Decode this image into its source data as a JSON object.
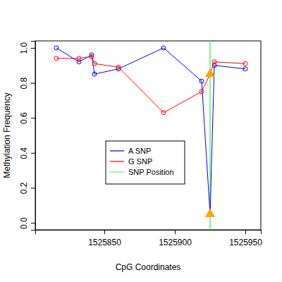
{
  "chart_data": {
    "type": "line",
    "marker": "circle",
    "x_label": "CpG Coordinates",
    "y_label": "Methylation Frequency",
    "x": [
      1525816,
      1525832,
      1525841,
      1525843,
      1525860,
      1525892,
      1525919,
      1525925,
      1525928,
      1525950
    ],
    "series": [
      {
        "name": "A SNP",
        "color": "#0000ff",
        "values": [
          1.0,
          0.92,
          0.96,
          0.85,
          0.88,
          1.0,
          0.81,
          0.05,
          0.9,
          0.88
        ]
      },
      {
        "name": "G SNP",
        "color": "#ff0000",
        "values": [
          0.94,
          0.94,
          0.95,
          0.91,
          0.89,
          0.63,
          0.75,
          0.85,
          0.92,
          0.91
        ]
      }
    ],
    "snp": {
      "name": "SNP Position",
      "color": "#66ee66",
      "x": 1525925,
      "marker_color": "#ffa500"
    },
    "xlim": [
      1525801,
      1525961
    ],
    "xticks": [
      1525850,
      1525900,
      1525950
    ],
    "ylim": [
      -0.04,
      1.04
    ],
    "yticks": [
      {
        "value": 0,
        "label": "0.0"
      },
      0.2,
      0.4,
      0.6,
      0.8,
      {
        "value": 1,
        "label": "1.0"
      }
    ],
    "grid": false,
    "legend": "center"
  }
}
